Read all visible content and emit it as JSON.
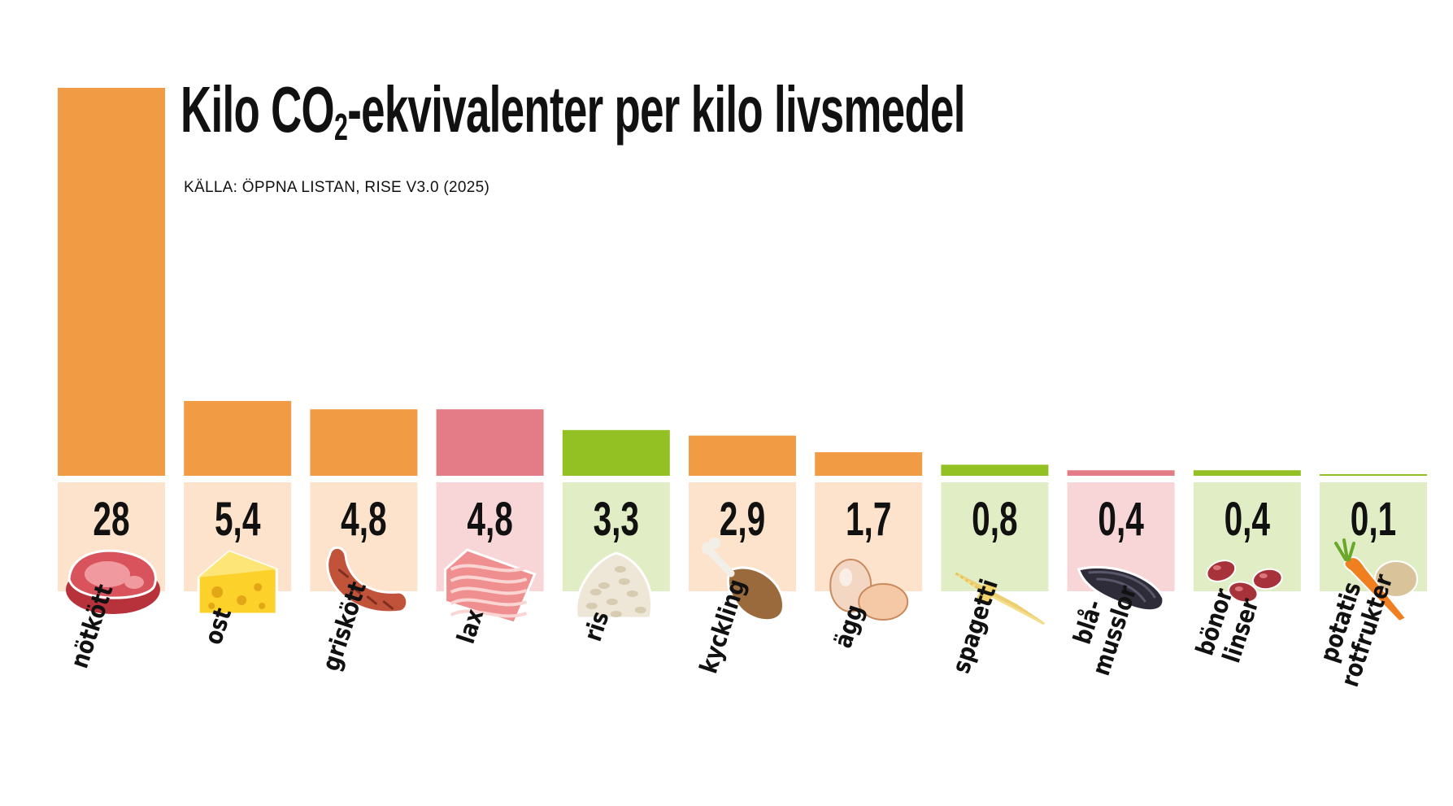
{
  "title_main": "Kilo CO",
  "title_sub": "2",
  "title_rest": "-ekvivalenter per kilo livsmedel",
  "source": "KÄLLA: ÖPPNA LISTAN, RISE V3.0 (2025)",
  "colors": {
    "meat": "#f29b45",
    "meat_light": "#fde3cb",
    "fish": "#e37c86",
    "fish_light": "#f8d6d7",
    "plant": "#93c023",
    "plant_light": "#e1edc4"
  },
  "chart_data": {
    "type": "bar",
    "title": "Kilo CO2-ekvivalenter per kilo livsmedel",
    "xlabel": "",
    "ylabel": "",
    "ylim": [
      0,
      28
    ],
    "grid": false,
    "categories": [
      "nötkött",
      "ost",
      "griskött",
      "lax",
      "ris",
      "kyckling",
      "ägg",
      "spagetti",
      "blå- musslor",
      "bönor linser",
      "potatis rotfrukter"
    ],
    "category_lines": [
      [
        "nötkött"
      ],
      [
        "ost"
      ],
      [
        "griskött"
      ],
      [
        "lax"
      ],
      [
        "ris"
      ],
      [
        "kyckling"
      ],
      [
        "ägg"
      ],
      [
        "spagetti"
      ],
      [
        "blå-",
        "musslor"
      ],
      [
        "bönor",
        "linser"
      ],
      [
        "potatis",
        "rotfrukter"
      ]
    ],
    "values": [
      28,
      5.4,
      4.8,
      4.8,
      3.3,
      2.9,
      1.7,
      0.8,
      0.4,
      0.4,
      0.1
    ],
    "value_labels": [
      "28",
      "5,4",
      "4,8",
      "4,8",
      "3,3",
      "2,9",
      "1,7",
      "0,8",
      "0,4",
      "0,4",
      "0,1"
    ],
    "groups": [
      "meat",
      "meat",
      "meat",
      "fish",
      "plant",
      "meat",
      "meat",
      "plant",
      "fish",
      "plant",
      "plant"
    ],
    "icons": [
      "steak-icon",
      "cheese-icon",
      "sausage-icon",
      "salmon-icon",
      "rice-icon",
      "chicken-leg-icon",
      "eggs-icon",
      "spaghetti-icon",
      "mussel-icon",
      "beans-icon",
      "carrot-potato-icon"
    ]
  }
}
